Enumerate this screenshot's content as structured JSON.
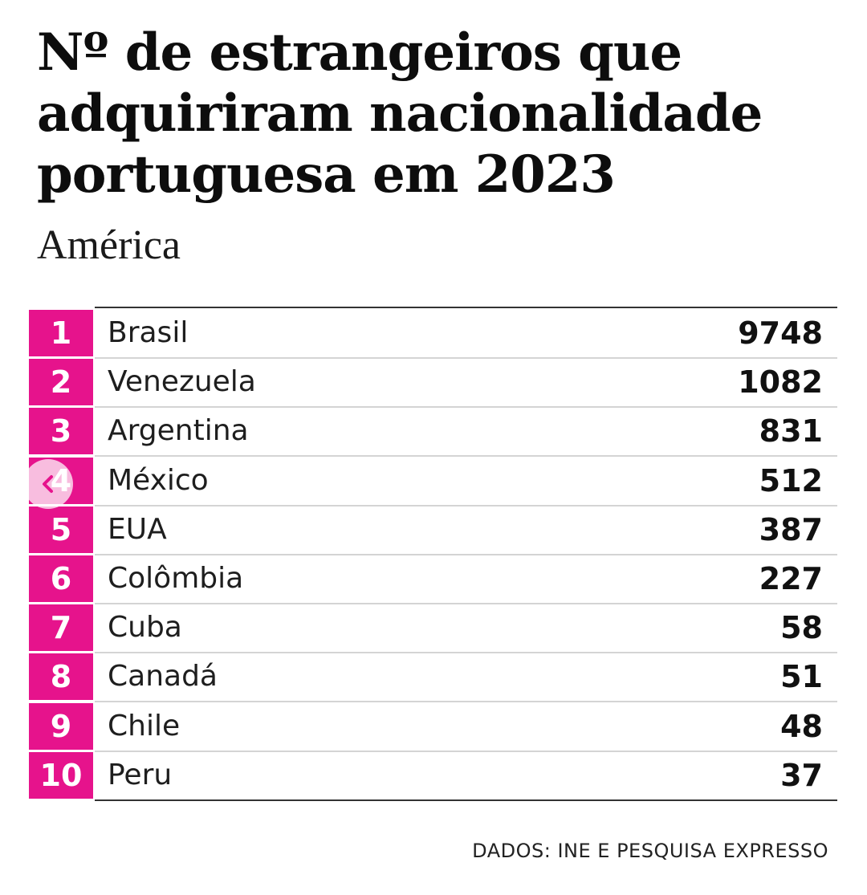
{
  "title_lines": [
    "Nº de estrangeiros que",
    "adquiriram nacionalidade",
    "portuguesa em 2023"
  ],
  "subtitle": "América",
  "source": "DADOS: INE E PESQUISA EXPRESSO",
  "accent_color": "#e6138c",
  "nav": {
    "icon": "chevron-left-icon"
  },
  "chart_data": {
    "type": "table",
    "title": "Nº de estrangeiros que adquiriram nacionalidade portuguesa em 2023",
    "subtitle": "América",
    "rows": [
      {
        "rank": "1",
        "country": "Brasil",
        "value": "9748"
      },
      {
        "rank": "2",
        "country": "Venezuela",
        "value": "1082"
      },
      {
        "rank": "3",
        "country": "Argentina",
        "value": "831"
      },
      {
        "rank": "4",
        "country": "México",
        "value": "512"
      },
      {
        "rank": "5",
        "country": "EUA",
        "value": "387"
      },
      {
        "rank": "6",
        "country": "Colômbia",
        "value": "227"
      },
      {
        "rank": "7",
        "country": "Cuba",
        "value": "58"
      },
      {
        "rank": "8",
        "country": "Canadá",
        "value": "51"
      },
      {
        "rank": "9",
        "country": "Chile",
        "value": "48"
      },
      {
        "rank": "10",
        "country": "Peru",
        "value": "37"
      }
    ]
  }
}
